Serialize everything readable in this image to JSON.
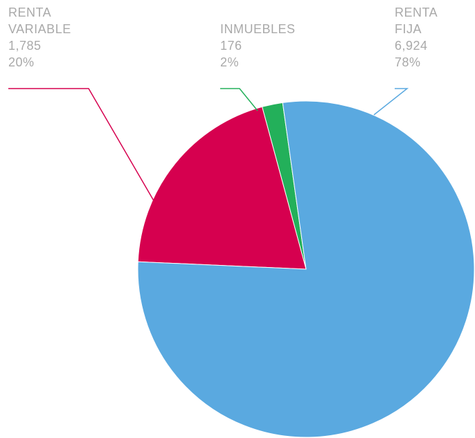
{
  "chart_data": {
    "type": "pie",
    "categories": [
      "RENTA FIJA",
      "RENTA VARIABLE",
      "INMUEBLES"
    ],
    "values": [
      6924,
      1785,
      176
    ],
    "value_labels": [
      "6,924",
      "1,785",
      "176"
    ],
    "percentages": [
      78,
      20,
      2
    ],
    "percentage_labels": [
      "78%",
      "20%",
      "2%"
    ],
    "colors": [
      "#5aa9e0",
      "#d6004f",
      "#23b05a"
    ]
  }
}
